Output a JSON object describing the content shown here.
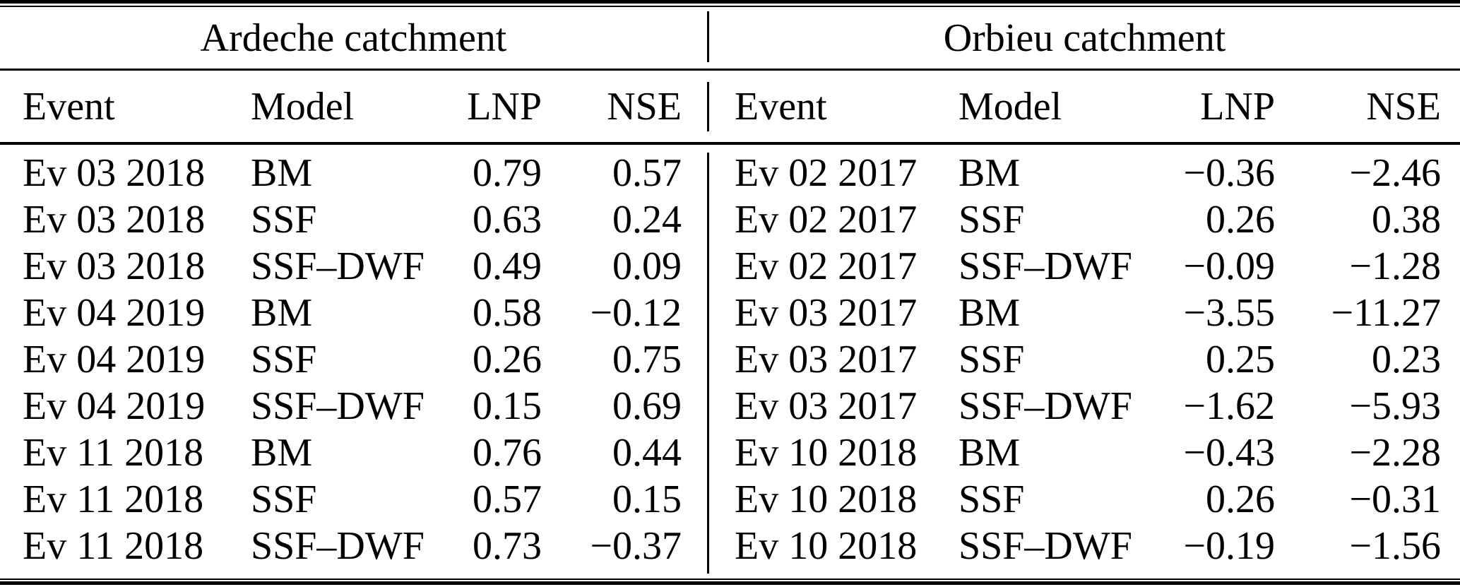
{
  "colors": {
    "text": "#000000",
    "background": "#ffffff",
    "rule": "#000000"
  },
  "catchments": [
    {
      "title": "Ardeche catchment",
      "columns": [
        "Event",
        "Model",
        "LNP",
        "NSE"
      ],
      "rows": [
        [
          "Ev 03 2018",
          "BM",
          "0.79",
          "0.57"
        ],
        [
          "Ev 03 2018",
          "SSF",
          "0.63",
          "0.24"
        ],
        [
          "Ev 03 2018",
          "SSF–DWF",
          "0.49",
          "0.09"
        ],
        [
          "Ev 04 2019",
          "BM",
          "0.58",
          "−0.12"
        ],
        [
          "Ev 04 2019",
          "SSF",
          "0.26",
          "0.75"
        ],
        [
          "Ev 04 2019",
          "SSF–DWF",
          "0.15",
          "0.69"
        ],
        [
          "Ev 11 2018",
          "BM",
          "0.76",
          "0.44"
        ],
        [
          "Ev 11 2018",
          "SSF",
          "0.57",
          "0.15"
        ],
        [
          "Ev 11 2018",
          "SSF–DWF",
          "0.73",
          "−0.37"
        ]
      ]
    },
    {
      "title": "Orbieu catchment",
      "columns": [
        "Event",
        "Model",
        "LNP",
        "NSE"
      ],
      "rows": [
        [
          "Ev 02 2017",
          "BM",
          "−0.36",
          "−2.46"
        ],
        [
          "Ev 02 2017",
          "SSF",
          "0.26",
          "0.38"
        ],
        [
          "Ev 02 2017",
          "SSF–DWF",
          "−0.09",
          "−1.28"
        ],
        [
          "Ev 03 2017",
          "BM",
          "−3.55",
          "−11.27"
        ],
        [
          "Ev 03 2017",
          "SSF",
          "0.25",
          "0.23"
        ],
        [
          "Ev 03 2017",
          "SSF–DWF",
          "−1.62",
          "−5.93"
        ],
        [
          "Ev 10 2018",
          "BM",
          "−0.43",
          "−2.28"
        ],
        [
          "Ev 10 2018",
          "SSF",
          "0.26",
          "−0.31"
        ],
        [
          "Ev 10 2018",
          "SSF–DWF",
          "−0.19",
          "−1.56"
        ]
      ]
    }
  ]
}
